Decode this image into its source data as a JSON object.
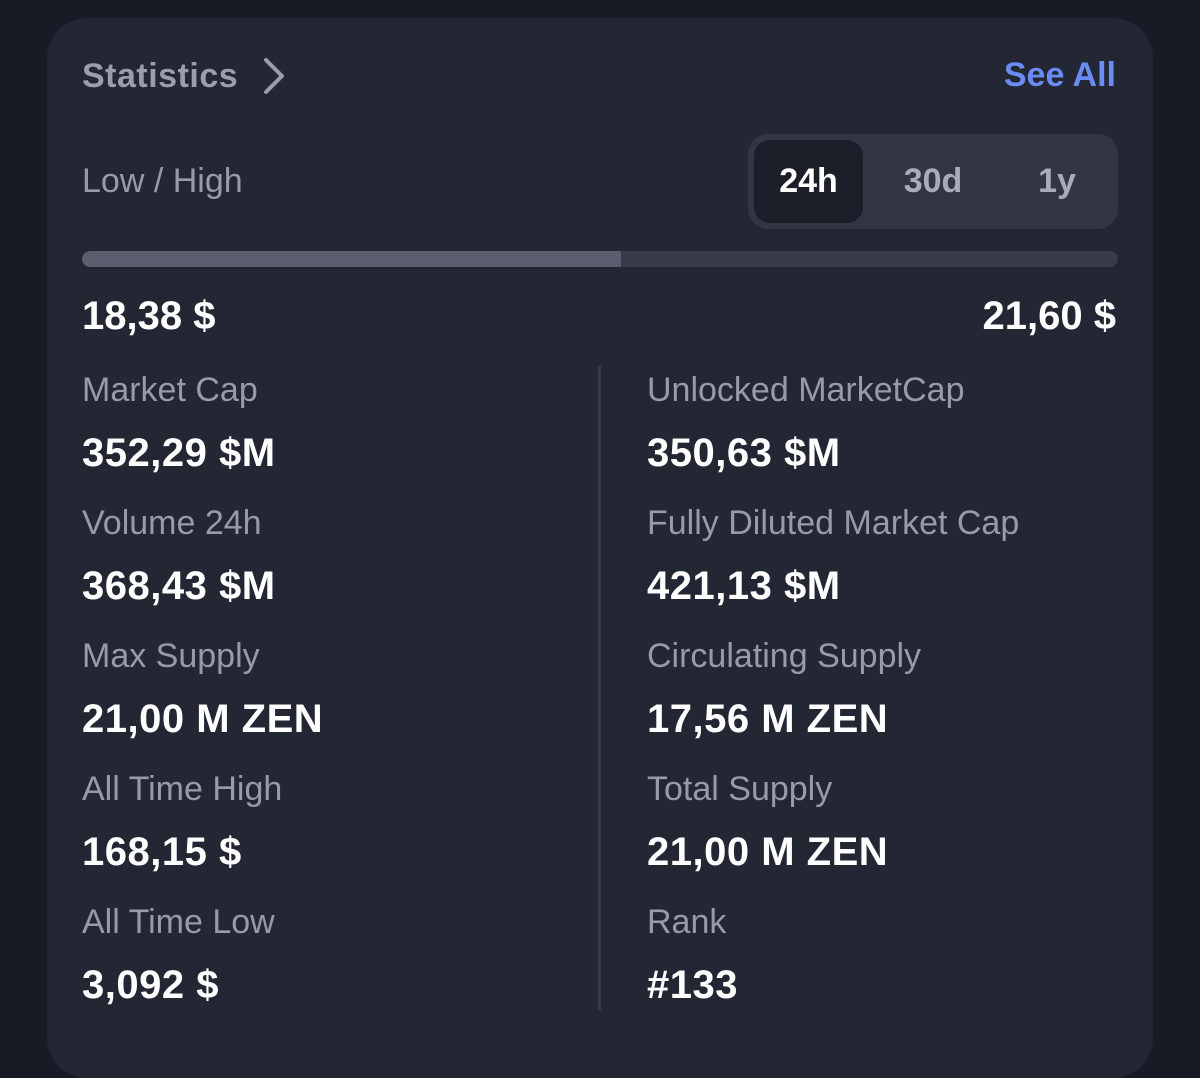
{
  "header": {
    "title": "Statistics",
    "see_all": "See All"
  },
  "range": {
    "label": "Low / High",
    "tabs": [
      "24h",
      "30d",
      "1y"
    ],
    "active_tab": "24h",
    "low": "18,38 $",
    "high": "21,60 $",
    "progress_fraction": 0.52
  },
  "stats": {
    "left": [
      {
        "label": "Market Cap",
        "value": "352,29 $M"
      },
      {
        "label": "Volume 24h",
        "value": "368,43 $M"
      },
      {
        "label": "Max Supply",
        "value": "21,00 M ZEN"
      },
      {
        "label": "All Time High",
        "value": "168,15 $"
      },
      {
        "label": "All Time Low",
        "value": "3,092 $"
      }
    ],
    "right": [
      {
        "label": "Unlocked MarketCap",
        "value": "350,63 $M"
      },
      {
        "label": "Fully Diluted Market Cap",
        "value": "421,13 $M"
      },
      {
        "label": "Circulating Supply",
        "value": "17,56 M ZEN"
      },
      {
        "label": "Total Supply",
        "value": "21,00 M ZEN"
      },
      {
        "label": "Rank",
        "value": "#133"
      }
    ]
  },
  "colors": {
    "background": "#181a25",
    "card": "#232633",
    "accent": "#6a8cf2",
    "muted_text": "#979ba9",
    "value_text": "#ffffff"
  },
  "icons": {
    "header_chevron": "chevron-right-icon"
  }
}
